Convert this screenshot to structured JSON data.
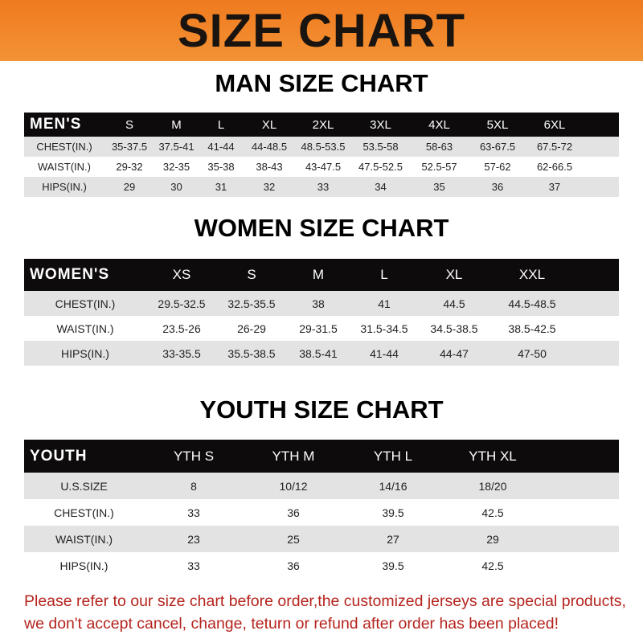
{
  "banner": "SIZE CHART",
  "accent_color": "#f07a1e",
  "tables": {
    "men": {
      "title": "MAN SIZE CHART",
      "header": [
        "MEN'S",
        "S",
        "M",
        "L",
        "XL",
        "2XL",
        "3XL",
        "4XL",
        "5XL",
        "6XL"
      ],
      "rows": [
        [
          "CHEST(IN.)",
          "35-37.5",
          "37.5-41",
          "41-44",
          "44-48.5",
          "48.5-53.5",
          "53.5-58",
          "58-63",
          "63-67.5",
          "67.5-72"
        ],
        [
          "WAIST(IN.)",
          "29-32",
          "32-35",
          "35-38",
          "38-43",
          "43-47.5",
          "47.5-52.5",
          "52.5-57",
          "57-62",
          "62-66.5"
        ],
        [
          "HIPS(IN.)",
          "29",
          "30",
          "31",
          "32",
          "33",
          "34",
          "35",
          "36",
          "37"
        ]
      ]
    },
    "women": {
      "title": "WOMEN SIZE CHART",
      "header": [
        "WOMEN'S",
        "XS",
        "S",
        "M",
        "L",
        "XL",
        "XXL"
      ],
      "rows": [
        [
          "CHEST(IN.)",
          "29.5-32.5",
          "32.5-35.5",
          "38",
          "41",
          "44.5",
          "44.5-48.5"
        ],
        [
          "WAIST(IN.)",
          "23.5-26",
          "26-29",
          "29-31.5",
          "31.5-34.5",
          "34.5-38.5",
          "38.5-42.5"
        ],
        [
          "HIPS(IN.)",
          "33-35.5",
          "35.5-38.5",
          "38.5-41",
          "41-44",
          "44-47",
          "47-50"
        ]
      ]
    },
    "youth": {
      "title": "YOUTH SIZE CHART",
      "header": [
        "YOUTH",
        "YTH S",
        "YTH M",
        "YTH L",
        "YTH XL"
      ],
      "rows": [
        [
          "U.S.SIZE",
          "8",
          "10/12",
          "14/16",
          "18/20"
        ],
        [
          "CHEST(IN.)",
          "33",
          "36",
          "39.5",
          "42.5"
        ],
        [
          "WAIST(IN.)",
          "23",
          "25",
          "27",
          "29"
        ],
        [
          "HIPS(IN.)",
          "33",
          "36",
          "39.5",
          "42.5"
        ]
      ]
    }
  },
  "note": {
    "line1": "Please refer to our size chart before order,the customized jerseys are special products,",
    "line2": "we don't accept cancel, change, teturn or refund after order has been placed!"
  }
}
